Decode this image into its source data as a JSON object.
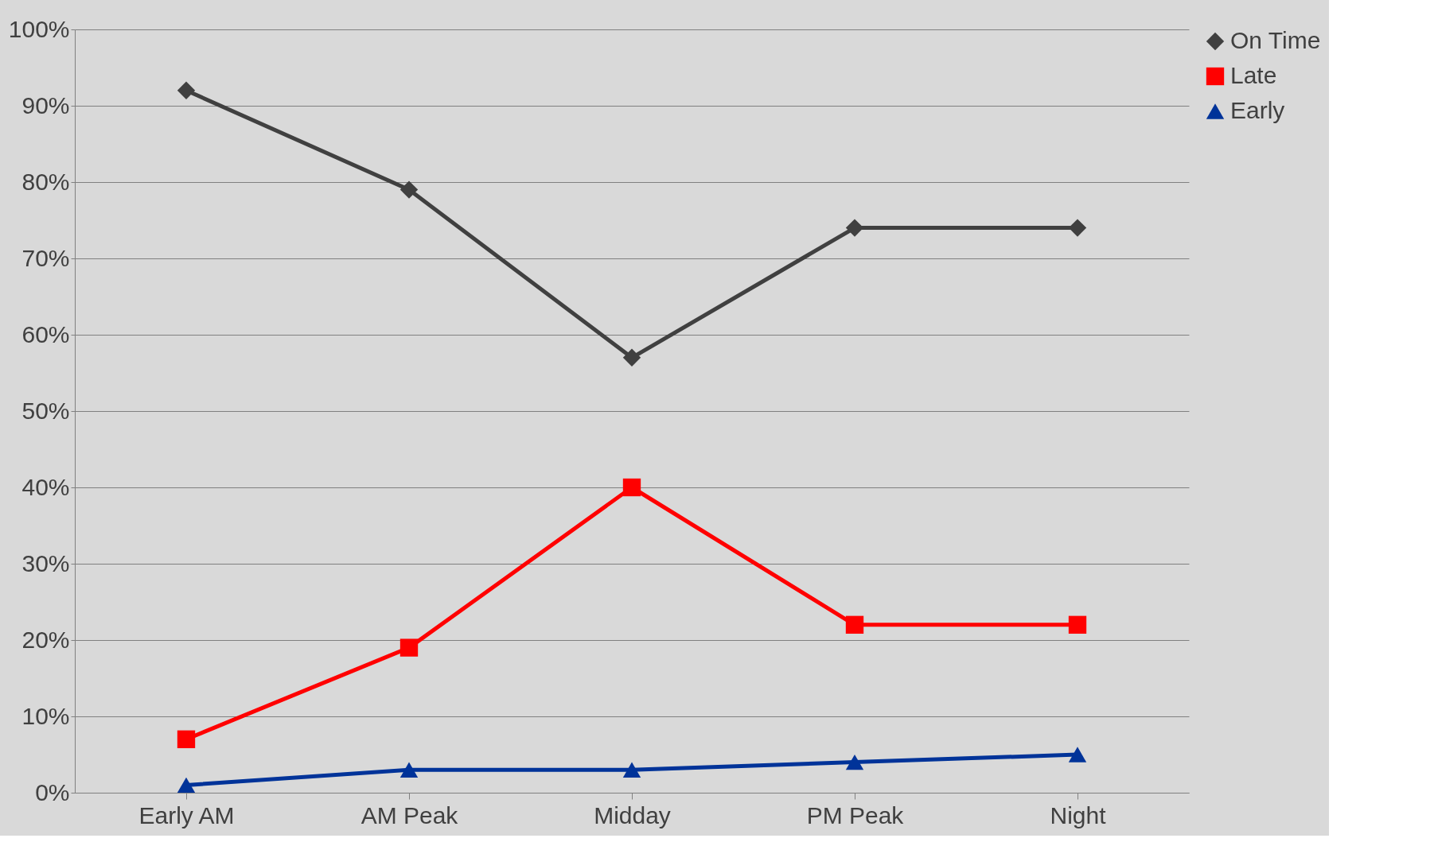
{
  "chart_data": {
    "type": "line",
    "categories": [
      "Early AM",
      "AM Peak",
      "Midday",
      "PM Peak",
      "Night"
    ],
    "series": [
      {
        "name": "On Time",
        "color": "#404040",
        "marker": "diamond",
        "values": [
          92,
          79,
          57,
          74,
          74
        ]
      },
      {
        "name": "Late",
        "color": "#ff0000",
        "marker": "square",
        "values": [
          7,
          19,
          40,
          22,
          22
        ]
      },
      {
        "name": "Early",
        "color": "#003399",
        "marker": "triangle",
        "values": [
          1,
          3,
          3,
          4,
          5
        ]
      }
    ],
    "ylim": [
      0,
      100
    ],
    "yticks": [
      {
        "value": 0,
        "label": "0%"
      },
      {
        "value": 10,
        "label": "10%"
      },
      {
        "value": 20,
        "label": "20%"
      },
      {
        "value": 30,
        "label": "30%"
      },
      {
        "value": 40,
        "label": "40%"
      },
      {
        "value": 50,
        "label": "50%"
      },
      {
        "value": 60,
        "label": "60%"
      },
      {
        "value": 70,
        "label": "70%"
      },
      {
        "value": 80,
        "label": "80%"
      },
      {
        "value": 90,
        "label": "90%"
      },
      {
        "value": 100,
        "label": "100%"
      }
    ],
    "grid": "y",
    "legend": "right",
    "line_style": "solid"
  }
}
